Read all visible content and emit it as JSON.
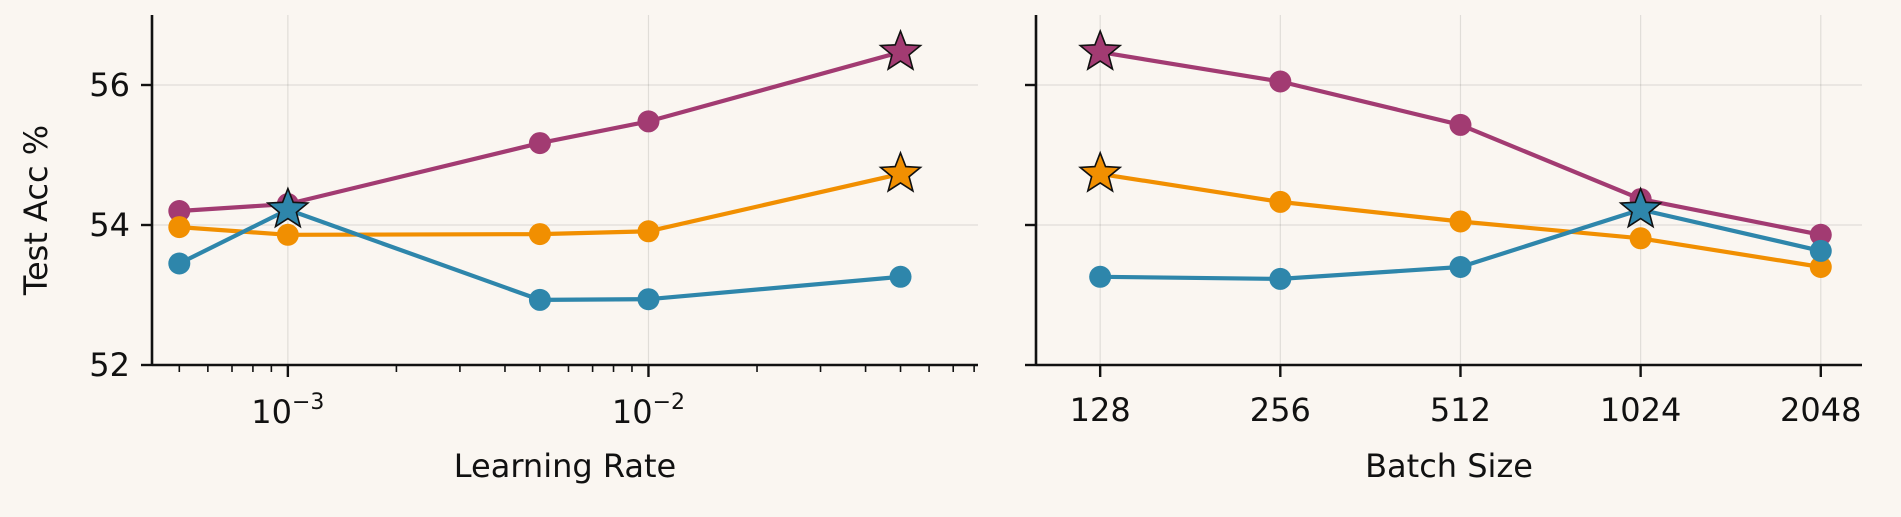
{
  "figure": {
    "background": "#FAF6F1",
    "ylabel": "Test Acc %"
  },
  "chart_data": [
    {
      "type": "line",
      "xlabel": "Learning Rate",
      "ylabel": "Test Acc %",
      "xscale": "log",
      "xlim": [
        0.00042,
        0.082
      ],
      "ylim": [
        52,
        57
      ],
      "yticks": [
        52,
        54,
        56
      ],
      "ytick_labels": [
        "52",
        "54",
        "56"
      ],
      "xticks_major": [
        0.001,
        0.01
      ],
      "xtick_labels": [
        {
          "base": "10",
          "exp": "−3"
        },
        {
          "base": "10",
          "exp": "−2"
        }
      ],
      "grid": true,
      "x": [
        0.0005,
        0.001,
        0.005,
        0.01,
        0.05
      ],
      "series": [
        {
          "color": "#A23B72",
          "values": [
            54.2,
            54.3,
            55.17,
            55.48,
            56.47
          ],
          "best_index": 4
        },
        {
          "color": "#F18F01",
          "values": [
            53.97,
            53.86,
            53.87,
            53.91,
            54.73
          ],
          "best_index": 4
        },
        {
          "color": "#2E86AB",
          "values": [
            53.45,
            54.22,
            52.93,
            52.94,
            53.26
          ],
          "best_index": 1
        }
      ]
    },
    {
      "type": "line",
      "xlabel": "Batch Size",
      "ylabel": "",
      "xscale": "log2",
      "xlim": [
        100,
        2400
      ],
      "ylim": [
        52,
        57
      ],
      "yticks": [
        52,
        54,
        56
      ],
      "xticks": [
        128,
        256,
        512,
        1024,
        2048
      ],
      "xtick_labels": [
        "128",
        "256",
        "512",
        "1024",
        "2048"
      ],
      "grid": true,
      "x": [
        128,
        256,
        512,
        1024,
        2048
      ],
      "series": [
        {
          "color": "#A23B72",
          "values": [
            56.47,
            56.05,
            55.43,
            54.37,
            53.86
          ],
          "best_index": 0
        },
        {
          "color": "#F18F01",
          "values": [
            54.73,
            54.33,
            54.05,
            53.81,
            53.4
          ],
          "best_index": 0
        },
        {
          "color": "#2E86AB",
          "values": [
            53.26,
            53.23,
            53.4,
            54.22,
            53.63
          ],
          "best_index": 3
        }
      ]
    }
  ]
}
